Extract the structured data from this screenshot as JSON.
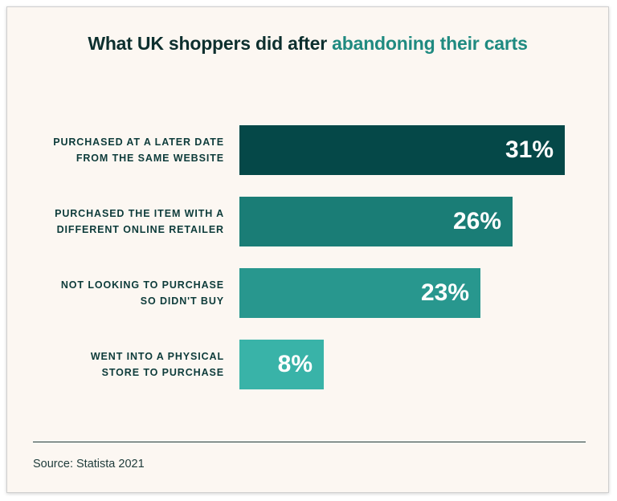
{
  "header": {
    "title_part1": "What UK shoppers did after ",
    "title_part2": "abandoning their carts"
  },
  "chart_data": {
    "type": "bar",
    "orientation": "horizontal",
    "categories": [
      [
        "PURCHASED AT A LATER DATE",
        "FROM THE SAME WEBSITE"
      ],
      [
        "PURCHASED THE ITEM WITH A",
        "DIFFERENT ONLINE RETAILER"
      ],
      [
        "NOT LOOKING TO PURCHASE",
        "SO DIDN'T BUY"
      ],
      [
        "WENT INTO A PHYSICAL",
        "STORE TO PURCHASE"
      ]
    ],
    "values": [
      31,
      26,
      23,
      8
    ],
    "value_labels": [
      "31%",
      "26%",
      "23%",
      "8%"
    ],
    "colors": [
      "#054848",
      "#1a7d76",
      "#28978e",
      "#39b3a8"
    ],
    "xlim": [
      0,
      31
    ],
    "grid": false
  },
  "footer": {
    "source": "Source: Statista 2021"
  }
}
